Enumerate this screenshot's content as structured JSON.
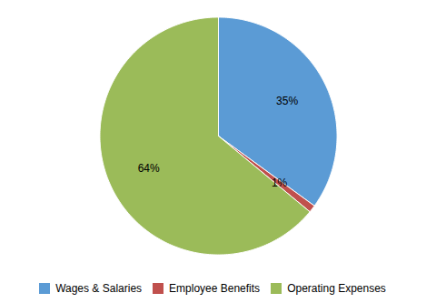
{
  "chart_data": {
    "type": "pie",
    "categories": [
      "Wages & Salaries",
      "Employee Benefits",
      "Operating Expenses"
    ],
    "values": [
      35,
      1,
      64
    ],
    "value_labels": [
      "35%",
      "1%",
      "64%"
    ],
    "colors": [
      "#5b9bd5",
      "#c0504d",
      "#9bbb59"
    ],
    "data_labels": true,
    "legend": "bottom"
  }
}
